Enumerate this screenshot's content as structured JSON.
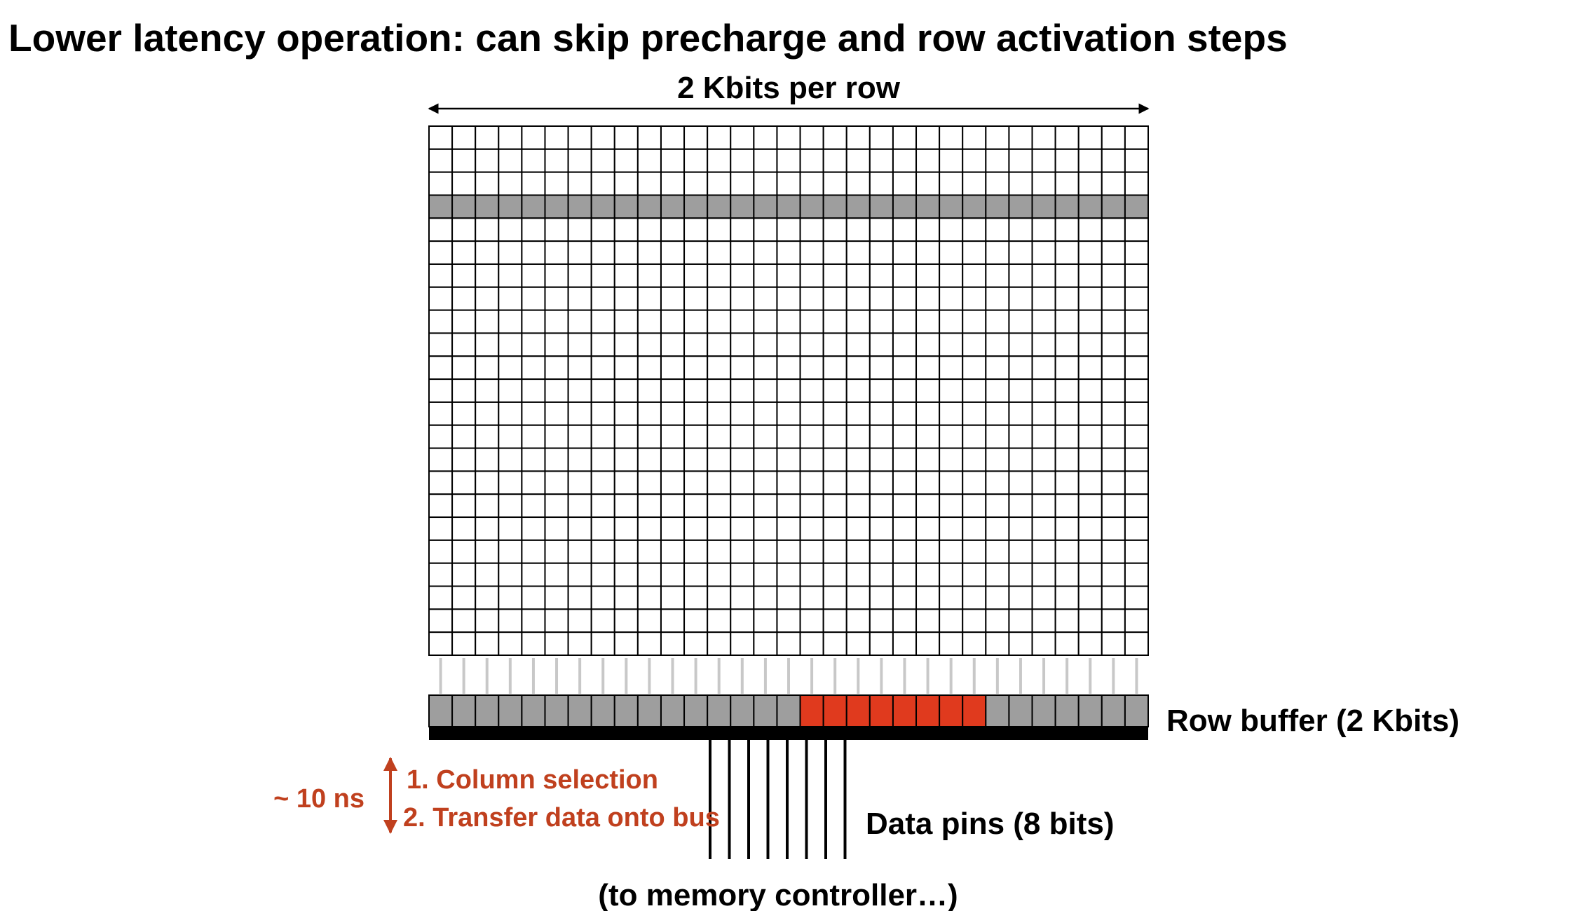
{
  "title": "Lower latency operation: can skip precharge and row activation steps",
  "row_width_label": "2 Kbits per row",
  "row_buffer_label": "Row buffer (2 Kbits)",
  "data_pins_label": "Data pins (8 bits)",
  "destination_label": "(to memory controller…)",
  "timing": {
    "duration": "~ 10 ns",
    "steps": [
      "1. Column selection",
      "2. Transfer data onto bus"
    ]
  },
  "dram_array": {
    "columns": 31,
    "rows": 23,
    "active_row": 3,
    "selected_buffer_cells": [
      16,
      23
    ],
    "data_pin_count": 8
  },
  "colors": {
    "cell_fill": "#ffffff",
    "cell_border": "#000000",
    "active_row_fill": "#9e9e9e",
    "buffer_fill": "#9e9e9e",
    "selected_fill": "#e03a1e",
    "bus": "#000000",
    "accent_text": "#c0401e",
    "connector": "#c8c8c8"
  }
}
